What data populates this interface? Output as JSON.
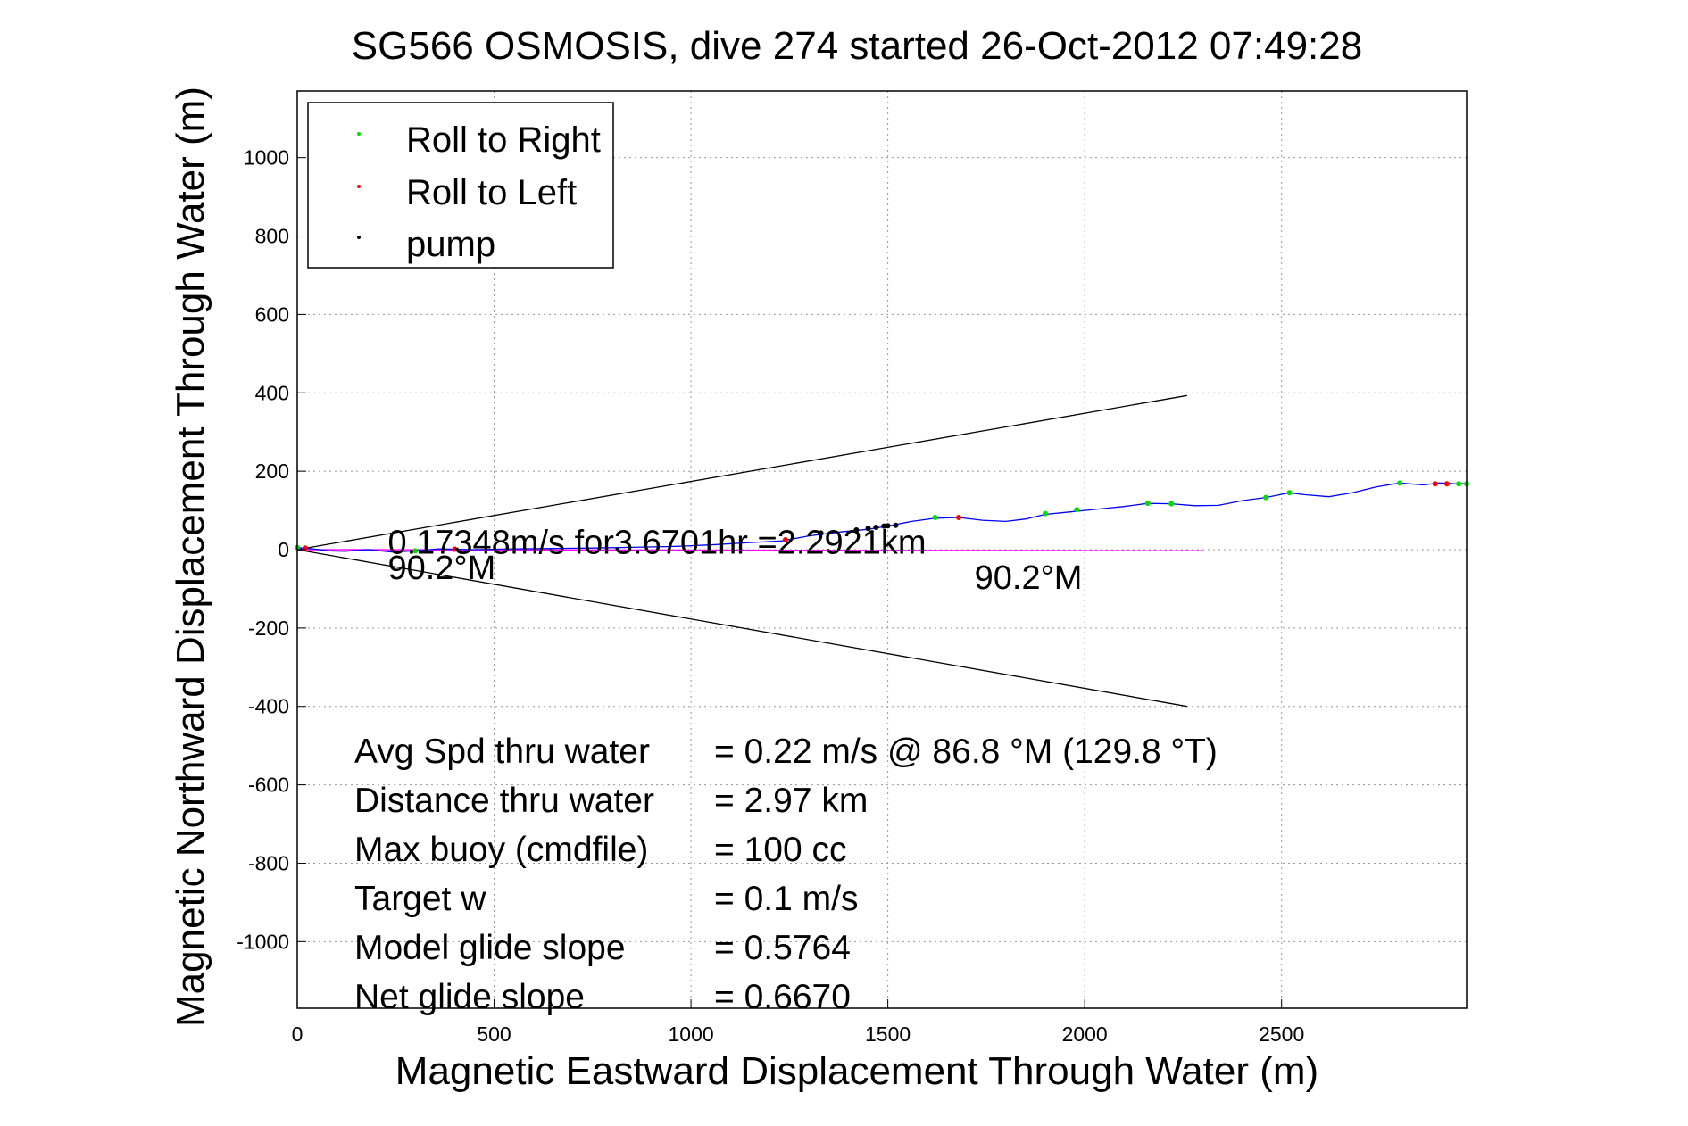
{
  "chart_data": {
    "type": "line",
    "title": "SG566 OSMOSIS, dive 274 started 26-Oct-2012 07:49:28",
    "xlabel": "Magnetic Eastward Displacement Through Water (m)",
    "ylabel": "Magnetic Northward Displacement Through Water (m)",
    "xlim": [
      0,
      2970
    ],
    "ylim": [
      -1170,
      1170
    ],
    "xticks": [
      0,
      500,
      1000,
      1500,
      2000,
      2500
    ],
    "yticks": [
      -1000,
      -800,
      -600,
      -400,
      -200,
      0,
      200,
      400,
      600,
      800,
      1000
    ],
    "grid": true,
    "legend": {
      "placement": "top-left",
      "entries": [
        {
          "label": "Roll to Right",
          "color": "#00dd00"
        },
        {
          "label": "Roll to Left",
          "color": "#ff0000"
        },
        {
          "label": "pump",
          "color": "#000000"
        }
      ]
    },
    "track": {
      "color": "#0000ff",
      "points": [
        [
          0,
          5
        ],
        [
          40,
          2
        ],
        [
          80,
          -3
        ],
        [
          120,
          -4
        ],
        [
          180,
          0
        ],
        [
          240,
          -6
        ],
        [
          300,
          -3
        ],
        [
          360,
          2
        ],
        [
          450,
          0
        ],
        [
          550,
          2
        ],
        [
          650,
          3
        ],
        [
          750,
          4
        ],
        [
          850,
          6
        ],
        [
          950,
          8
        ],
        [
          1050,
          12
        ],
        [
          1150,
          18
        ],
        [
          1230,
          22
        ],
        [
          1300,
          35
        ],
        [
          1380,
          45
        ],
        [
          1450,
          52
        ],
        [
          1500,
          60
        ],
        [
          1560,
          72
        ],
        [
          1620,
          80
        ],
        [
          1680,
          82
        ],
        [
          1740,
          75
        ],
        [
          1800,
          72
        ],
        [
          1850,
          78
        ],
        [
          1900,
          90
        ],
        [
          1950,
          95
        ],
        [
          2000,
          100
        ],
        [
          2050,
          105
        ],
        [
          2100,
          110
        ],
        [
          2160,
          118
        ],
        [
          2220,
          117
        ],
        [
          2280,
          112
        ],
        [
          2340,
          113
        ],
        [
          2400,
          125
        ],
        [
          2460,
          133
        ],
        [
          2520,
          145
        ],
        [
          2560,
          140
        ],
        [
          2620,
          135
        ],
        [
          2680,
          145
        ],
        [
          2740,
          160
        ],
        [
          2800,
          170
        ],
        [
          2860,
          165
        ],
        [
          2900,
          170
        ],
        [
          2940,
          168
        ],
        [
          2970,
          168
        ]
      ]
    },
    "markers": {
      "roll_right": [
        [
          1620,
          82
        ],
        [
          1900,
          92
        ],
        [
          1980,
          102
        ],
        [
          2160,
          118
        ],
        [
          2220,
          117
        ],
        [
          2460,
          133
        ],
        [
          2520,
          145
        ],
        [
          2800,
          170
        ],
        [
          2950,
          168
        ],
        [
          2970,
          168
        ],
        [
          0,
          5
        ],
        [
          300,
          -3
        ]
      ],
      "roll_left": [
        [
          1240,
          25
        ],
        [
          1680,
          82
        ],
        [
          2890,
          168
        ],
        [
          2920,
          168
        ],
        [
          20,
          4
        ],
        [
          400,
          1
        ]
      ],
      "pump": [
        [
          1330,
          42
        ],
        [
          1420,
          50
        ],
        [
          1450,
          54
        ],
        [
          1470,
          57
        ],
        [
          1490,
          60
        ],
        [
          1500,
          61
        ],
        [
          1520,
          62
        ]
      ]
    },
    "heading_line": {
      "color": "#ff00ff",
      "points": [
        [
          0,
          0
        ],
        [
          2300,
          -3
        ]
      ]
    },
    "cone_lines": [
      {
        "color": "#000000",
        "points": [
          [
            0,
            0
          ],
          [
            2260,
            393
          ]
        ]
      },
      {
        "color": "#000000",
        "points": [
          [
            0,
            0
          ],
          [
            2260,
            -400
          ]
        ]
      }
    ],
    "annotations": [
      {
        "text": "0.17348m/s for3.6701hr =2.2921km",
        "x": 230,
        "y": -10
      },
      {
        "text": "90.2°M",
        "x": 230,
        "y": -75
      },
      {
        "text": "90.2°M",
        "x": 1720,
        "y": -100
      }
    ],
    "stats": [
      {
        "label": "Avg Spd thru water",
        "value": "=  0.22 m/s @  86.8 °M (129.8 °T)"
      },
      {
        "label": "Distance thru water",
        "value": "=  2.97 km"
      },
      {
        "label": "Max buoy (cmdfile)",
        "value": "= 100 cc"
      },
      {
        "label": "Target w",
        "value": "= 0.1 m/s"
      },
      {
        "label": "Model glide slope",
        "value": "= 0.5764"
      },
      {
        "label": "Net glide slope",
        "value": "= 0.6670"
      }
    ]
  }
}
